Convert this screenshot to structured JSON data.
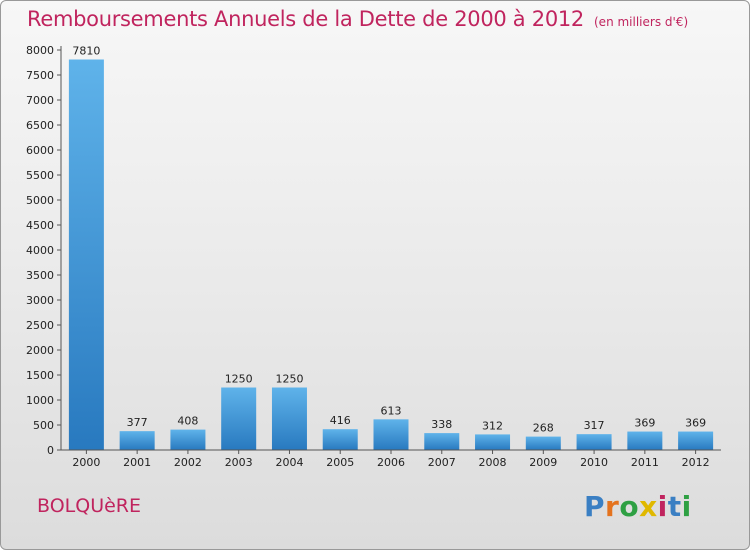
{
  "title": "Remboursements Annuels de la Dette de 2000 à 2012",
  "unit": "(en milliers d'€)",
  "city": "BOLQUèRE",
  "logo": {
    "text": "Proxiti",
    "colors": [
      "#3a7fc3",
      "#e4731e",
      "#2ea043",
      "#e0b800",
      "#c0245e",
      "#3a7fc3",
      "#2ea043"
    ]
  },
  "colors": {
    "accent": "#c0245e",
    "bar_light": "#5fb3ea",
    "bar_dark": "#2879bf"
  },
  "chart_data": {
    "type": "bar",
    "title": "Remboursements Annuels de la Dette de 2000 à 2012",
    "xlabel": "",
    "ylabel": "",
    "categories": [
      "2000",
      "2001",
      "2002",
      "2003",
      "2004",
      "2005",
      "2006",
      "2007",
      "2008",
      "2009",
      "2010",
      "2011",
      "2012"
    ],
    "values": [
      7810,
      377,
      408,
      1250,
      1250,
      416,
      613,
      338,
      312,
      268,
      317,
      369,
      369
    ],
    "ylim": [
      0,
      8000
    ],
    "yticks": [
      0,
      500,
      1000,
      1500,
      2000,
      2500,
      3000,
      3500,
      4000,
      4500,
      5000,
      5500,
      6000,
      6500,
      7000,
      7500,
      8000
    ],
    "grid": false,
    "legend": "none"
  }
}
